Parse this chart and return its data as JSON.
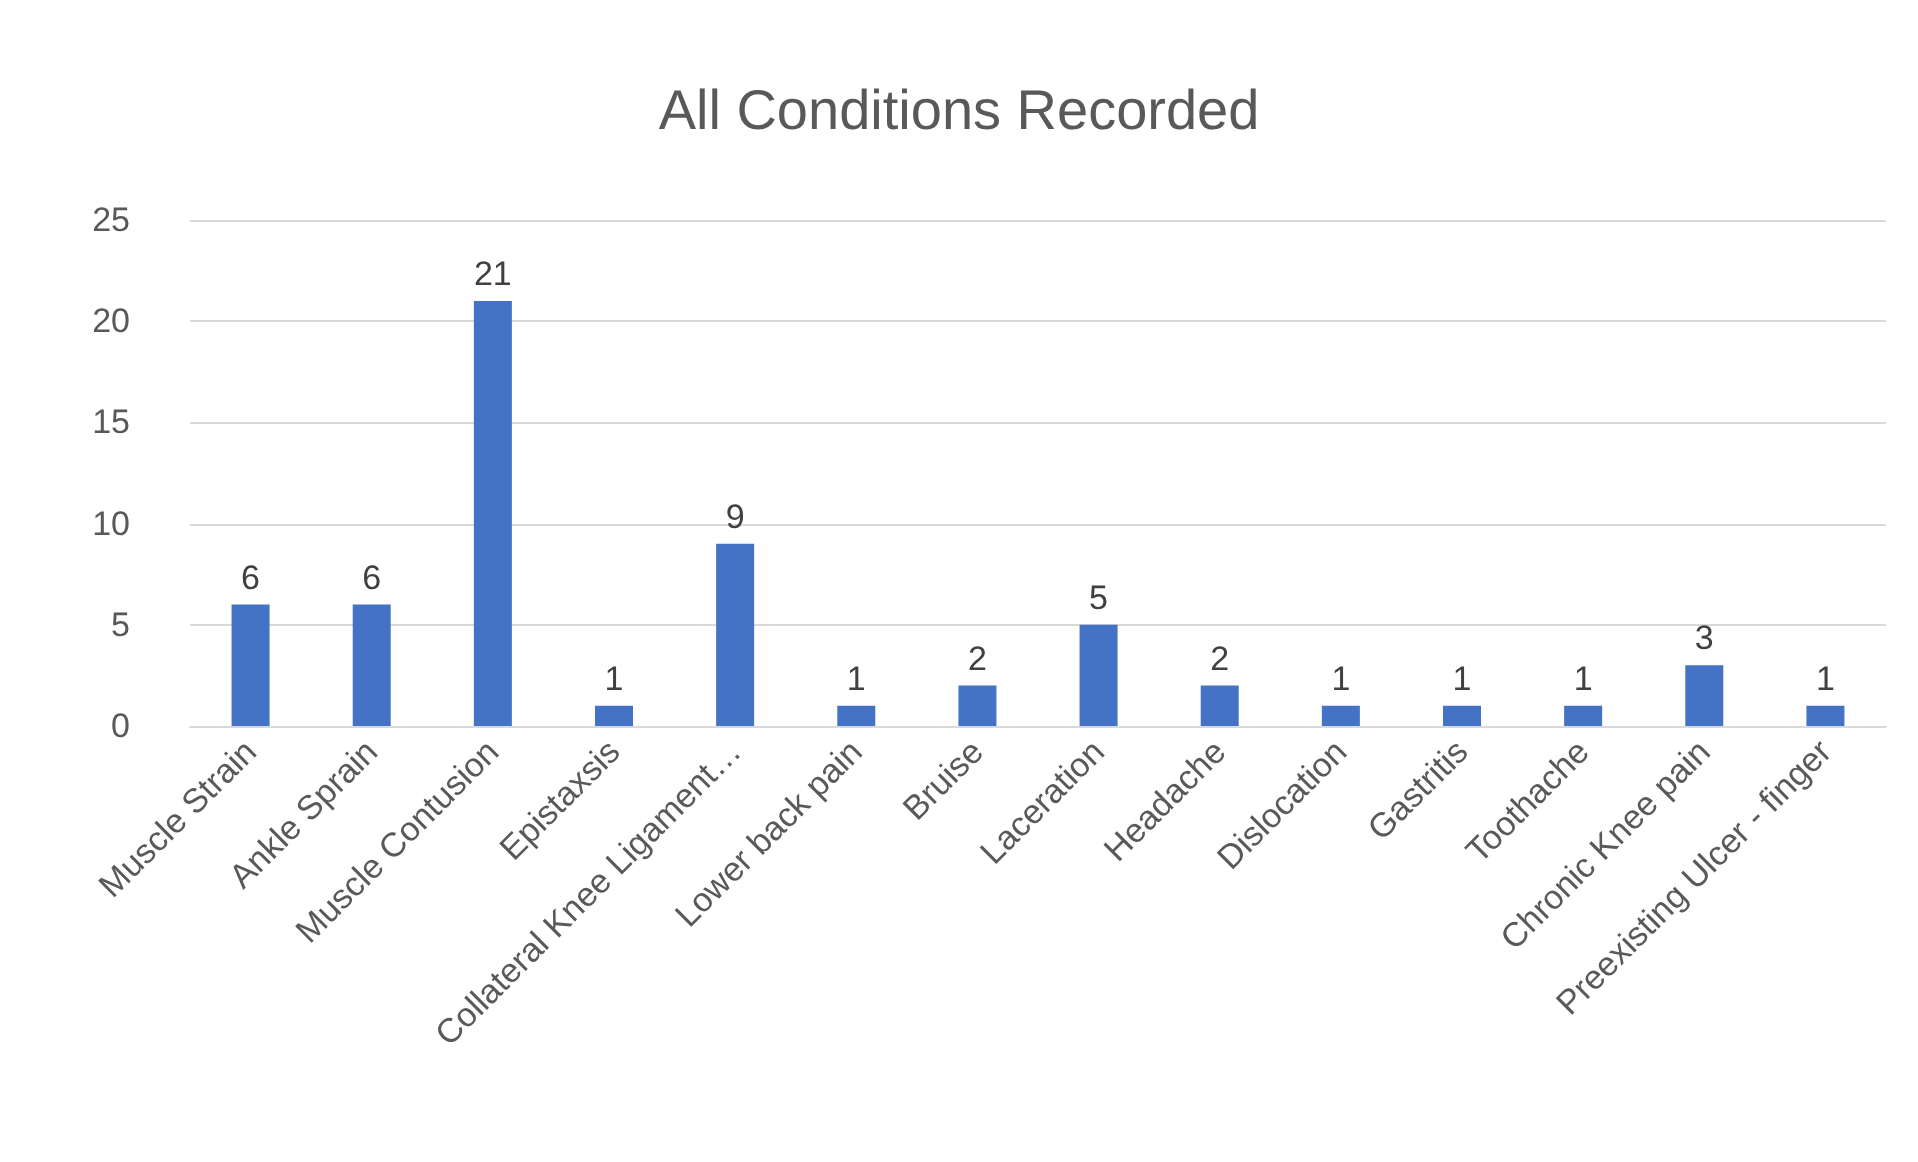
{
  "chart_data": {
    "type": "bar",
    "title": "All Conditions Recorded",
    "categories": [
      "Muscle Strain",
      "Ankle Sprain",
      "Muscle Contusion",
      "Epistaxsis",
      "Collateral Knee Ligament…",
      "Lower back pain",
      "Bruise",
      "Laceration",
      "Headache",
      "Dislocation",
      "Gastritis",
      "Toothache",
      "Chronic Knee pain",
      "Preexisting Ulcer - finger"
    ],
    "values": [
      6,
      6,
      21,
      1,
      9,
      1,
      2,
      5,
      2,
      1,
      1,
      1,
      3,
      1
    ],
    "color": "#4472c4",
    "ylim": [
      0,
      25
    ],
    "yticks": [
      0,
      5,
      10,
      15,
      20,
      25
    ],
    "grid": "y",
    "data_labels": true
  }
}
